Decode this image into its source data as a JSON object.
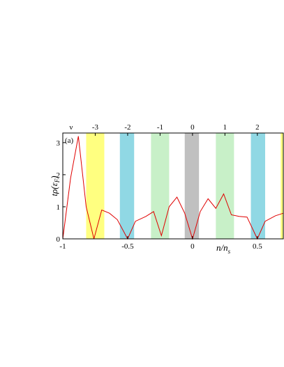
{
  "chart_data": {
    "type": "line",
    "panel_label": "(a)",
    "xlabel": "n/n",
    "xlabel_sub": "s",
    "ylabel_main": "tρ(ε",
    "ylabel_sub": "F",
    "ylabel_close": ")",
    "top_axis_title": "ν",
    "xlim": [
      -1,
      0.7
    ],
    "ylim": [
      0,
      3.3
    ],
    "x_ticks": [
      {
        "value": -1,
        "label": "-1"
      },
      {
        "value": -0.5,
        "label": "-0.5"
      },
      {
        "value": 0,
        "label": "0"
      },
      {
        "value": 0.5,
        "label": "0.5"
      }
    ],
    "y_ticks": [
      {
        "value": 0,
        "label": "0"
      },
      {
        "value": 1,
        "label": "1"
      },
      {
        "value": 2,
        "label": "2"
      },
      {
        "value": 3,
        "label": "3"
      }
    ],
    "top_ticks": [
      {
        "value": -0.75,
        "label": "-3"
      },
      {
        "value": -0.5,
        "label": "-2"
      },
      {
        "value": -0.25,
        "label": "-1"
      },
      {
        "value": 0,
        "label": "0"
      },
      {
        "value": 0.25,
        "label": "1"
      },
      {
        "value": 0.5,
        "label": "2"
      }
    ],
    "bands": [
      {
        "from": -0.82,
        "to": -0.68,
        "color": "#ffff80"
      },
      {
        "from": -0.56,
        "to": -0.45,
        "color": "#90d8e4"
      },
      {
        "from": -0.32,
        "to": -0.18,
        "color": "#c8f0c8"
      },
      {
        "from": -0.06,
        "to": 0.05,
        "color": "#c0c0c0"
      },
      {
        "from": 0.18,
        "to": 0.32,
        "color": "#c8f0c8"
      },
      {
        "from": 0.45,
        "to": 0.56,
        "color": "#90d8e4"
      },
      {
        "from": 0.68,
        "to": 0.7,
        "color": "#ffff80"
      }
    ],
    "series": [
      {
        "color": "#e00000",
        "x": [
          -1,
          -0.94,
          -0.88,
          -0.82,
          -0.76,
          -0.7,
          -0.64,
          -0.58,
          -0.5,
          -0.44,
          -0.36,
          -0.3,
          -0.24,
          -0.18,
          -0.12,
          -0.06,
          0,
          0.06,
          0.12,
          0.18,
          0.24,
          0.3,
          0.36,
          0.42,
          0.5,
          0.56,
          0.64,
          0.7
        ],
        "y": [
          0,
          1.9,
          3.2,
          1.0,
          0.0,
          0.9,
          0.8,
          0.6,
          0.0,
          0.55,
          0.7,
          0.85,
          0.1,
          1.0,
          1.3,
          0.8,
          0.0,
          0.85,
          1.25,
          0.95,
          1.4,
          0.75,
          0.7,
          0.68,
          0.0,
          0.55,
          0.72,
          0.8
        ]
      }
    ],
    "grid": false,
    "legend": "none"
  }
}
